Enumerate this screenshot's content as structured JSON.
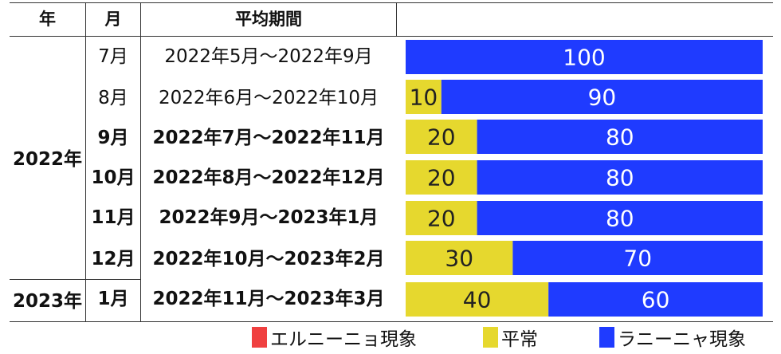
{
  "table": {
    "headers": {
      "year": "年",
      "month": "月",
      "period": "平均期間"
    },
    "years": [
      "2022年",
      "2023年"
    ],
    "rows": [
      {
        "month": "7月",
        "period": "2022年5月～2022年9月",
        "bold": false
      },
      {
        "month": "8月",
        "period": "2022年6月～2022年10月",
        "bold": false
      },
      {
        "month": "9月",
        "period": "2022年7月～2022年11月",
        "bold": true
      },
      {
        "month": "10月",
        "period": "2022年8月～2022年12月",
        "bold": true
      },
      {
        "month": "11月",
        "period": "2022年9月～2023年1月",
        "bold": true
      },
      {
        "month": "12月",
        "period": "2022年10月～2023年2月",
        "bold": true
      },
      {
        "month": "1月",
        "period": "2022年11月～2023年3月",
        "bold": true
      }
    ]
  },
  "chart_data": {
    "type": "bar",
    "stacked": true,
    "orientation": "horizontal",
    "categories": [
      "7月",
      "8月",
      "9月",
      "10月",
      "11月",
      "12月",
      "1月"
    ],
    "series": [
      {
        "name": "エルニーニョ現象",
        "color": "#f04040",
        "values": [
          0,
          0,
          0,
          0,
          0,
          0,
          0
        ]
      },
      {
        "name": "平常",
        "color": "#e6d82e",
        "values": [
          0,
          10,
          20,
          20,
          20,
          30,
          40
        ]
      },
      {
        "name": "ラニーニャ現象",
        "color": "#1f3bff",
        "values": [
          100,
          90,
          80,
          80,
          80,
          70,
          60
        ]
      }
    ],
    "xlim": [
      0,
      100
    ]
  }
}
